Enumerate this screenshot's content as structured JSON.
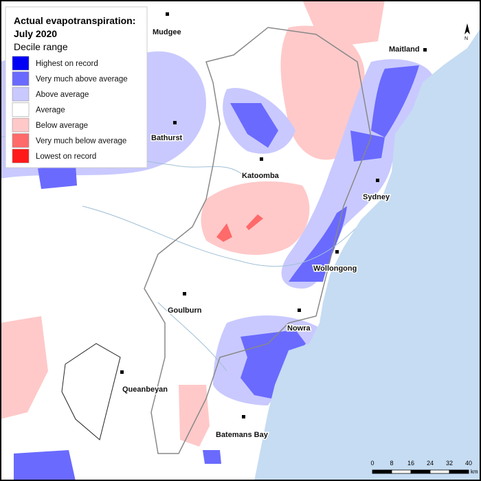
{
  "legend": {
    "title_lines": [
      "Actual evapotranspiration:",
      "July 2020"
    ],
    "subtitle": "Decile range",
    "items": [
      {
        "label": "Highest on record",
        "color": "#0000f5"
      },
      {
        "label": "Very much above average",
        "color": "#6a6aff"
      },
      {
        "label": "Above average",
        "color": "#c9c9ff"
      },
      {
        "label": "Average",
        "color": "#ffffff"
      },
      {
        "label": "Below average",
        "color": "#ffc9c9"
      },
      {
        "label": "Very much below average",
        "color": "#ff6a6a"
      },
      {
        "label": "Lowest on record",
        "color": "#ff1a1a"
      }
    ]
  },
  "places": [
    "Mudgee",
    "Maitland",
    "Bathurst",
    "Katoomba",
    "Sydney",
    "Wollongong",
    "Goulburn",
    "Nowra",
    "Queanbeyan",
    "Batemans Bay"
  ],
  "scale_bar": {
    "ticks": [
      0,
      8,
      16,
      24,
      32,
      40
    ],
    "unit": "km"
  },
  "north": "N"
}
